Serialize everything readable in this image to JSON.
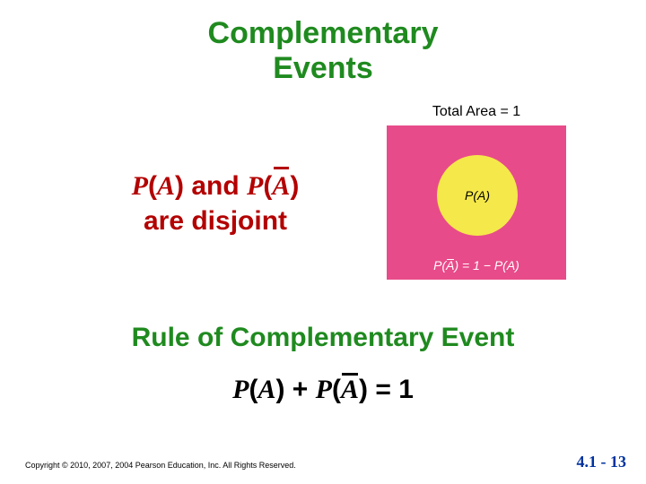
{
  "colors": {
    "title_green": "#1f8a1f",
    "nav_blue": "#0033a0",
    "disjoint_red": "#b30000",
    "rule_green": "#1f8a1f",
    "pink_square": "#e84b8a",
    "circle_fill": "#f5e84a",
    "complement_text": "#ffffff",
    "diag_title": "#000000"
  },
  "title": {
    "line1": "Complementary",
    "line2": "Events"
  },
  "disjoint": {
    "line1_prefix": "P",
    "line1_A": "A",
    "line1_between": " and ",
    "line1_P2": "P",
    "line1_Abar": "A",
    "line2": "are disjoint"
  },
  "diagram": {
    "total_area": "Total Area = 1",
    "pa_label": "P(A)",
    "complement_expr_prefix": "P(",
    "complement_Abar": "A",
    "complement_expr_suffix": ") = 1 − P(A)"
  },
  "rule": {
    "heading": "Rule of Complementary Event",
    "formula_P1": "P",
    "formula_A1": "A",
    "formula_plus": " + ",
    "formula_P2": "P",
    "formula_Abar": "A",
    "formula_tail": " = 1"
  },
  "footer": {
    "copyright": "Copyright © 2010, 2007, 2004 Pearson Education, Inc. All Rights Reserved.",
    "page": "4.1 - 13"
  }
}
